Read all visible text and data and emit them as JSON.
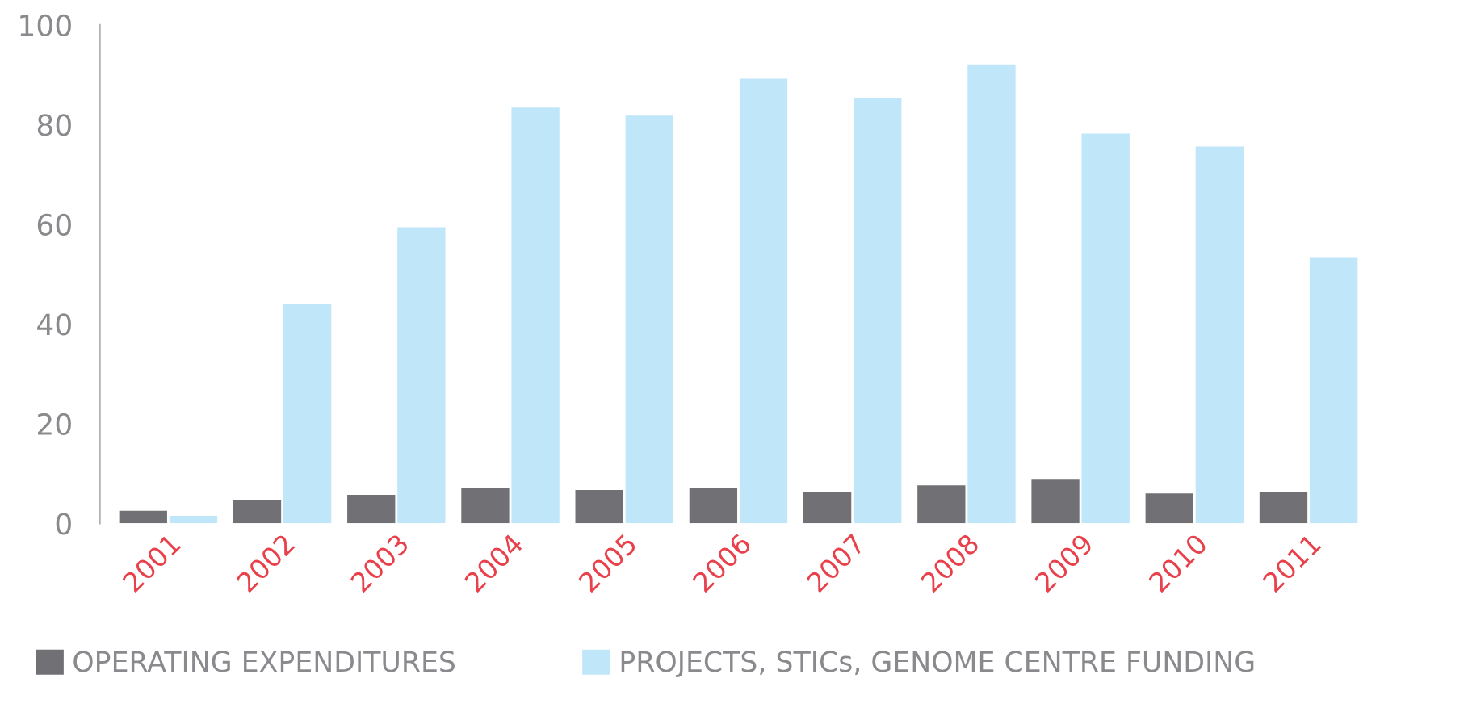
{
  "chart_data": {
    "type": "bar",
    "categories": [
      "2001",
      "2002",
      "2003",
      "2004",
      "2005",
      "2006",
      "2007",
      "2008",
      "2009",
      "2010",
      "2011"
    ],
    "series": [
      {
        "name": "OPERATING EXPENDITURES",
        "color": "#717175",
        "values": [
          2.5,
          4.7,
          5.7,
          7,
          6.7,
          7,
          6.3,
          7.6,
          8.9,
          6,
          6.3
        ]
      },
      {
        "name": "PROJECTS, STICs, GENOME CENTRE FUNDING",
        "color": "#bfe6f9",
        "values": [
          1.5,
          44,
          59.4,
          83.4,
          81.8,
          89.2,
          85.3,
          92.1,
          78.2,
          75.6,
          53.4
        ]
      }
    ],
    "ylim": [
      0,
      100
    ],
    "yticks": [
      0,
      20,
      40,
      60,
      80,
      100
    ],
    "grid": false,
    "legend": "bottom"
  }
}
